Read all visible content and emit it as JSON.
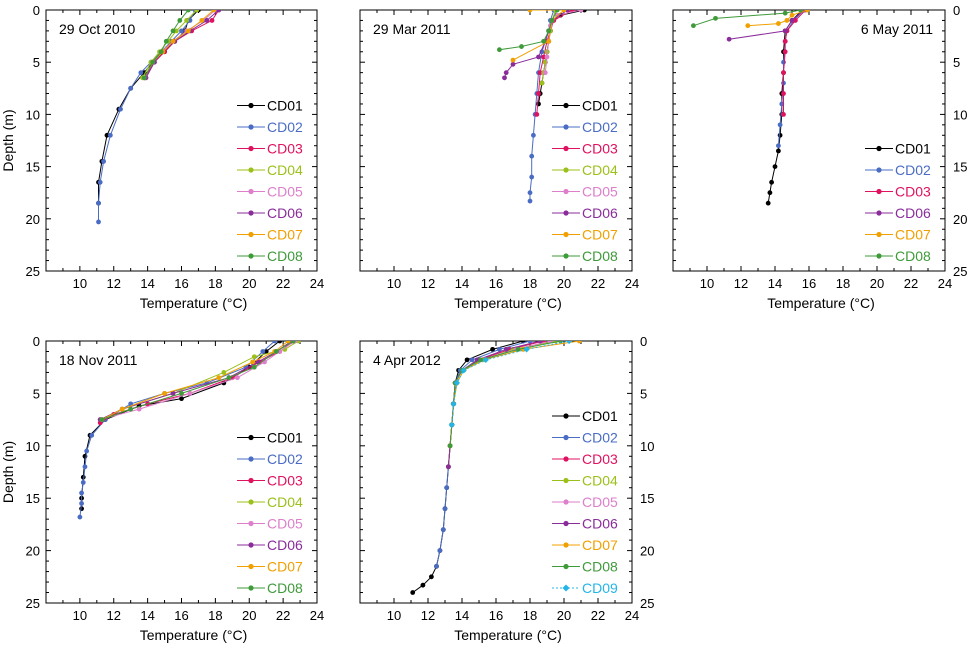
{
  "figure": {
    "ylabel": "Depth (m)",
    "xlabel": "Temperature (°C)"
  },
  "colors": {
    "CD01": "#000000",
    "CD02": "#4a6cc4",
    "CD03": "#e0115f",
    "CD04": "#9cc01a",
    "CD05": "#dd7fcb",
    "CD06": "#8a2d9b",
    "CD07": "#f0a000",
    "CD08": "#3f9a3a",
    "CD09": "#23b5e8"
  },
  "chart_data": [
    {
      "type": "line",
      "title": "29 Oct 2010",
      "xlabel": "Temperature (°C)",
      "ylabel": "Depth (m)",
      "xlim": [
        8,
        24
      ],
      "ylim": [
        0,
        25
      ],
      "xticks": [
        "10",
        "12",
        "14",
        "16",
        "18",
        "20",
        "22",
        "24"
      ],
      "yticks": [
        "0",
        "5",
        "10",
        "15",
        "20",
        "25"
      ],
      "y_axis_side": "left",
      "show_xlabel": true,
      "show_ylabel": true,
      "legend_position": "lower-right",
      "legend": [
        "CD01",
        "CD02",
        "CD03",
        "CD04",
        "CD05",
        "CD06",
        "CD07",
        "CD08"
      ],
      "series": [
        {
          "name": "CD01",
          "x": [
            17.0,
            16.4,
            16.2,
            15.6,
            15.0,
            14.3,
            13.8,
            13.0,
            12.3,
            11.6,
            11.3,
            11.1,
            11.1
          ],
          "y": [
            0,
            1,
            2,
            3,
            4,
            5,
            6,
            7.5,
            9.5,
            12,
            14.5,
            16.5,
            18.5
          ]
        },
        {
          "name": "CD02",
          "x": [
            16.8,
            16.5,
            16.0,
            15.4,
            14.8,
            14.2,
            13.6,
            13.0,
            12.4,
            11.8,
            11.4,
            11.2,
            11.1,
            11.1
          ],
          "y": [
            0,
            1,
            2,
            3,
            4,
            5,
            6,
            7.5,
            9.5,
            12,
            14.5,
            16.5,
            18.5,
            20.3
          ]
        },
        {
          "name": "CD03",
          "x": [
            18.2,
            17.8,
            16.6,
            15.6,
            15.0,
            14.4,
            13.8
          ],
          "y": [
            0,
            1,
            2,
            3,
            4,
            5,
            6.5
          ]
        },
        {
          "name": "CD04",
          "x": [
            16.9,
            16.3,
            15.7,
            15.2,
            14.7,
            14.2,
            13.7
          ],
          "y": [
            0,
            1,
            2,
            3,
            4,
            5,
            6.5
          ]
        },
        {
          "name": "CD05",
          "x": [
            18.0,
            17.3,
            16.3,
            15.5,
            14.8,
            14.4,
            13.9
          ],
          "y": [
            0,
            1,
            2,
            3,
            4,
            5,
            6.5
          ]
        },
        {
          "name": "CD06",
          "x": [
            18.2,
            17.5,
            16.5,
            15.6,
            14.9,
            14.4,
            13.9
          ],
          "y": [
            0,
            1,
            2,
            3,
            4,
            5,
            6.5
          ]
        },
        {
          "name": "CD07",
          "x": [
            17.9,
            17.2,
            16.4,
            15.5,
            14.9,
            14.3,
            13.8
          ],
          "y": [
            0,
            1,
            2,
            3,
            4,
            5,
            6.5
          ]
        },
        {
          "name": "CD08",
          "x": [
            16.4,
            15.9,
            15.5,
            15.1,
            14.8,
            14.3,
            13.8
          ],
          "y": [
            0,
            1,
            2,
            3,
            4,
            5,
            6.5
          ]
        }
      ]
    },
    {
      "type": "line",
      "title": "29 Mar 2011",
      "xlabel": "Temperature (°C)",
      "ylabel": "Depth (m)",
      "xlim": [
        8,
        24
      ],
      "ylim": [
        0,
        25
      ],
      "xticks": [
        "10",
        "12",
        "14",
        "16",
        "18",
        "20",
        "22",
        "24"
      ],
      "yticks": [
        "0",
        "5",
        "10",
        "15",
        "20",
        "25"
      ],
      "y_axis_side": "none",
      "show_xlabel": true,
      "show_ylabel": false,
      "legend_position": "lower-right",
      "legend": [
        "CD01",
        "CD02",
        "CD03",
        "CD04",
        "CD05",
        "CD06",
        "CD07",
        "CD08"
      ],
      "series": [
        {
          "name": "CD01",
          "x": [
            21.2,
            19.8,
            19.3,
            19.2,
            19.1,
            19.0,
            18.9,
            18.8,
            18.7,
            18.6,
            18.5
          ],
          "y": [
            0,
            0.5,
            1,
            2,
            3,
            4,
            5,
            6,
            7,
            8,
            9
          ]
        },
        {
          "name": "CD02",
          "x": [
            19.4,
            19.2,
            19.1,
            18.9,
            18.7,
            18.5,
            18.4,
            18.3,
            18.2,
            18.1,
            18.1,
            18.0,
            18.0
          ],
          "y": [
            0,
            1,
            2,
            3,
            4,
            6,
            8,
            10,
            12,
            14,
            16,
            17.5,
            18.3
          ]
        },
        {
          "name": "CD03",
          "x": [
            20.5,
            19.4,
            19.2,
            19.0,
            18.8,
            18.6,
            18.5,
            18.4
          ],
          "y": [
            0,
            1,
            2,
            3,
            4.5,
            6,
            8,
            10
          ]
        },
        {
          "name": "CD04",
          "x": [
            19.5,
            19.3,
            19.2,
            19.1,
            19.0,
            18.9,
            18.8,
            18.7
          ],
          "y": [
            0,
            1,
            2,
            3,
            4,
            5,
            6,
            7
          ]
        },
        {
          "name": "CD05",
          "x": [
            21.0,
            19.6,
            19.2,
            19.1,
            19.0,
            18.9
          ],
          "y": [
            0,
            0.5,
            1.5,
            3,
            4.5,
            6
          ]
        },
        {
          "name": "CD06",
          "x": [
            20.2,
            19.3,
            19.1,
            18.9,
            18.5,
            17.0,
            16.6,
            16.5
          ],
          "y": [
            0,
            1,
            2,
            3,
            4.5,
            5.2,
            6,
            6.5
          ]
        },
        {
          "name": "CD07",
          "x": [
            18.0,
            20.0,
            19.3,
            19.1,
            17.0
          ],
          "y": [
            0,
            0,
            1,
            3,
            4.8
          ]
        },
        {
          "name": "CD08",
          "x": [
            19.6,
            19.3,
            19.1,
            18.8,
            17.5,
            16.2
          ],
          "y": [
            0,
            1,
            2,
            3,
            3.5,
            3.8
          ]
        }
      ]
    },
    {
      "type": "line",
      "title": "6 May 2011",
      "xlabel": "Temperature (°C)",
      "ylabel": "Depth (m)",
      "xlim": [
        8,
        24
      ],
      "ylim": [
        0,
        25
      ],
      "xticks": [
        "10",
        "12",
        "14",
        "16",
        "18",
        "20",
        "22",
        "24"
      ],
      "yticks": [
        "0",
        "5",
        "10",
        "15",
        "20",
        "25"
      ],
      "y_axis_side": "right",
      "show_xlabel": true,
      "show_ylabel": false,
      "legend_position": "lower-right",
      "legend": [
        "CD01",
        "CD02",
        "CD03",
        "CD06",
        "CD07",
        "CD08"
      ],
      "series": [
        {
          "name": "CD01",
          "x": [
            15.6,
            15.0,
            14.6,
            14.5,
            14.5,
            14.4,
            14.4,
            14.3,
            14.2,
            14.0,
            13.8,
            13.7,
            13.6
          ],
          "y": [
            0,
            1,
            2,
            4,
            6,
            8,
            10,
            12,
            13.5,
            15,
            16.5,
            17.5,
            18.5
          ]
        },
        {
          "name": "CD02",
          "x": [
            15.7,
            15.1,
            14.7,
            14.6,
            14.5,
            14.5,
            14.4,
            14.3,
            14.2
          ],
          "y": [
            0,
            1,
            2,
            3,
            5,
            7,
            9,
            11,
            13
          ]
        },
        {
          "name": "CD03",
          "x": [
            15.8,
            15.2,
            14.7,
            14.6,
            14.6,
            14.5,
            14.5,
            14.5
          ],
          "y": [
            0,
            1,
            2,
            3,
            4,
            6,
            8,
            10
          ]
        },
        {
          "name": "CD06",
          "x": [
            15.7,
            15.0,
            14.6,
            11.3
          ],
          "y": [
            0,
            1,
            2,
            2.8
          ]
        },
        {
          "name": "CD07",
          "x": [
            15.9,
            15.0,
            14.7,
            14.2,
            12.4
          ],
          "y": [
            0,
            0.5,
            1,
            1.3,
            1.5
          ]
        },
        {
          "name": "CD08",
          "x": [
            15.5,
            14.6,
            10.5,
            9.2
          ],
          "y": [
            0,
            0.3,
            0.8,
            1.5
          ]
        }
      ]
    },
    {
      "type": "line",
      "title": "18 Nov 2011",
      "xlabel": "Temperature (°C)",
      "ylabel": "Depth (m)",
      "xlim": [
        8,
        24
      ],
      "ylim": [
        0,
        25
      ],
      "xticks": [
        "10",
        "12",
        "14",
        "16",
        "18",
        "20",
        "22",
        "24"
      ],
      "yticks": [
        "0",
        "5",
        "10",
        "15",
        "20",
        "25"
      ],
      "y_axis_side": "left",
      "show_xlabel": true,
      "show_ylabel": true,
      "legend_position": "lower-right",
      "legend": [
        "CD01",
        "CD02",
        "CD03",
        "CD04",
        "CD05",
        "CD06",
        "CD07",
        "CD08"
      ],
      "series": [
        {
          "name": "CD01",
          "x": [
            21.8,
            21.0,
            20.0,
            18.5,
            16.0,
            13.5,
            11.5,
            10.6,
            10.3,
            10.2,
            10.1,
            10.1
          ],
          "y": [
            0,
            1,
            2.5,
            4,
            5.5,
            6.2,
            7.5,
            9,
            11,
            13,
            15,
            16
          ]
        },
        {
          "name": "CD02",
          "x": [
            21.5,
            20.8,
            19.8,
            17.5,
            15.0,
            13.0,
            11.5,
            10.7,
            10.4,
            10.3,
            10.2,
            10.1,
            10.1,
            10.0
          ],
          "y": [
            0,
            1,
            2.5,
            4,
            5,
            6,
            7.5,
            9,
            10.5,
            12,
            13.5,
            14.5,
            15.5,
            16.8
          ]
        },
        {
          "name": "CD03",
          "x": [
            22.6,
            21.8,
            20.6,
            19.0,
            16.5,
            14.0,
            12.0,
            11.2
          ],
          "y": [
            0,
            1,
            2,
            3.5,
            5,
            6,
            7,
            7.8
          ]
        },
        {
          "name": "CD04",
          "x": [
            22.9,
            22.1,
            20.3,
            18.5,
            15.5,
            12.5,
            11.3
          ],
          "y": [
            0,
            0.8,
            1.5,
            3,
            5,
            6.5,
            7.5
          ]
        },
        {
          "name": "CD05",
          "x": [
            22.7,
            21.8,
            20.9,
            19.3,
            16.5,
            13.5,
            11.2
          ],
          "y": [
            0,
            1,
            2,
            3.5,
            5,
            6.5,
            7.5
          ]
        },
        {
          "name": "CD06",
          "x": [
            22.5,
            21.6,
            20.5,
            18.8,
            15.5,
            12.5,
            11.2
          ],
          "y": [
            0,
            1,
            2,
            3.5,
            5,
            6.5,
            7.5
          ]
        },
        {
          "name": "CD07",
          "x": [
            22.3,
            21.5,
            20.2,
            18.2,
            15.0,
            12.5,
            11.3
          ],
          "y": [
            0,
            1,
            2,
            3.5,
            5,
            6.5,
            7.5
          ]
        },
        {
          "name": "CD08",
          "x": [
            22.6,
            21.6,
            20.3,
            18.8,
            16.0,
            13.0,
            11.3
          ],
          "y": [
            0,
            1,
            2.5,
            3.5,
            5,
            6.5,
            7.5
          ]
        }
      ]
    },
    {
      "type": "line",
      "title": "4 Apr 2012",
      "xlabel": "Temperature (°C)",
      "ylabel": "Depth (m)",
      "xlim": [
        8,
        24
      ],
      "ylim": [
        0,
        25
      ],
      "xticks": [
        "10",
        "12",
        "14",
        "16",
        "18",
        "20",
        "22",
        "24"
      ],
      "yticks": [
        "0",
        "5",
        "10",
        "15",
        "20",
        "25"
      ],
      "y_axis_side": "right",
      "show_xlabel": true,
      "show_ylabel": false,
      "legend_position": "lower-right",
      "legend": [
        "CD01",
        "CD02",
        "CD03",
        "CD04",
        "CD05",
        "CD06",
        "CD07",
        "CD08",
        "CD09"
      ],
      "series": [
        {
          "name": "CD01",
          "x": [
            17.6,
            15.8,
            14.3,
            13.8,
            13.6,
            13.5,
            13.4,
            13.3,
            13.2,
            13.1,
            13.0,
            12.9,
            12.7,
            12.5,
            12.2,
            11.7,
            11.1
          ],
          "y": [
            0,
            0.8,
            1.8,
            2.8,
            4,
            6,
            8,
            10,
            12,
            14,
            16,
            18,
            20,
            21.5,
            22.5,
            23.3,
            24
          ]
        },
        {
          "name": "CD02",
          "x": [
            18.0,
            16.2,
            14.6,
            13.9,
            13.6,
            13.5,
            13.4,
            13.3,
            13.2,
            13.1,
            13.0,
            12.9,
            12.7,
            12.5
          ],
          "y": [
            0,
            0.8,
            1.8,
            2.8,
            4,
            6,
            8,
            10,
            12,
            14,
            16,
            18,
            20,
            21.5
          ]
        },
        {
          "name": "CD03",
          "x": [
            18.8,
            16.8,
            15.0,
            14.0,
            13.6,
            13.5,
            13.4,
            13.3,
            13.2
          ],
          "y": [
            0,
            0.8,
            1.8,
            2.8,
            4,
            6,
            8,
            10,
            12
          ]
        },
        {
          "name": "CD04",
          "x": [
            19.5,
            17.0,
            15.2,
            14.1,
            13.7,
            13.5,
            13.4,
            13.3,
            13.2
          ],
          "y": [
            0,
            0.8,
            1.8,
            2.8,
            4,
            6,
            8,
            10,
            12
          ]
        },
        {
          "name": "CD05",
          "x": [
            19.2,
            17.2,
            15.1,
            14.0,
            13.6,
            13.5,
            13.4,
            13.3
          ],
          "y": [
            0,
            0.8,
            1.8,
            2.8,
            4,
            6,
            8,
            10
          ]
        },
        {
          "name": "CD06",
          "x": [
            18.6,
            16.6,
            14.9,
            14.0,
            13.6,
            13.5,
            13.4,
            13.3,
            13.2
          ],
          "y": [
            0,
            0.8,
            1.8,
            2.8,
            4,
            6,
            8,
            10,
            12
          ]
        },
        {
          "name": "CD07",
          "x": [
            20.9,
            17.6,
            15.3,
            14.1,
            13.7,
            13.5,
            13.4,
            13.3
          ],
          "y": [
            0,
            0.8,
            1.8,
            2.8,
            4,
            6,
            8,
            10
          ]
        },
        {
          "name": "CD08",
          "x": [
            19.8,
            17.3,
            15.1,
            14.0,
            13.6,
            13.5,
            13.4,
            13.3
          ],
          "y": [
            0,
            0.8,
            1.8,
            2.8,
            4,
            6,
            8,
            10
          ]
        },
        {
          "name": "CD09",
          "x": [
            20.3,
            17.8,
            15.4,
            14.1,
            13.7,
            13.5,
            13.4
          ],
          "y": [
            0,
            0.8,
            1.8,
            2.8,
            4,
            6,
            8
          ]
        }
      ]
    }
  ]
}
